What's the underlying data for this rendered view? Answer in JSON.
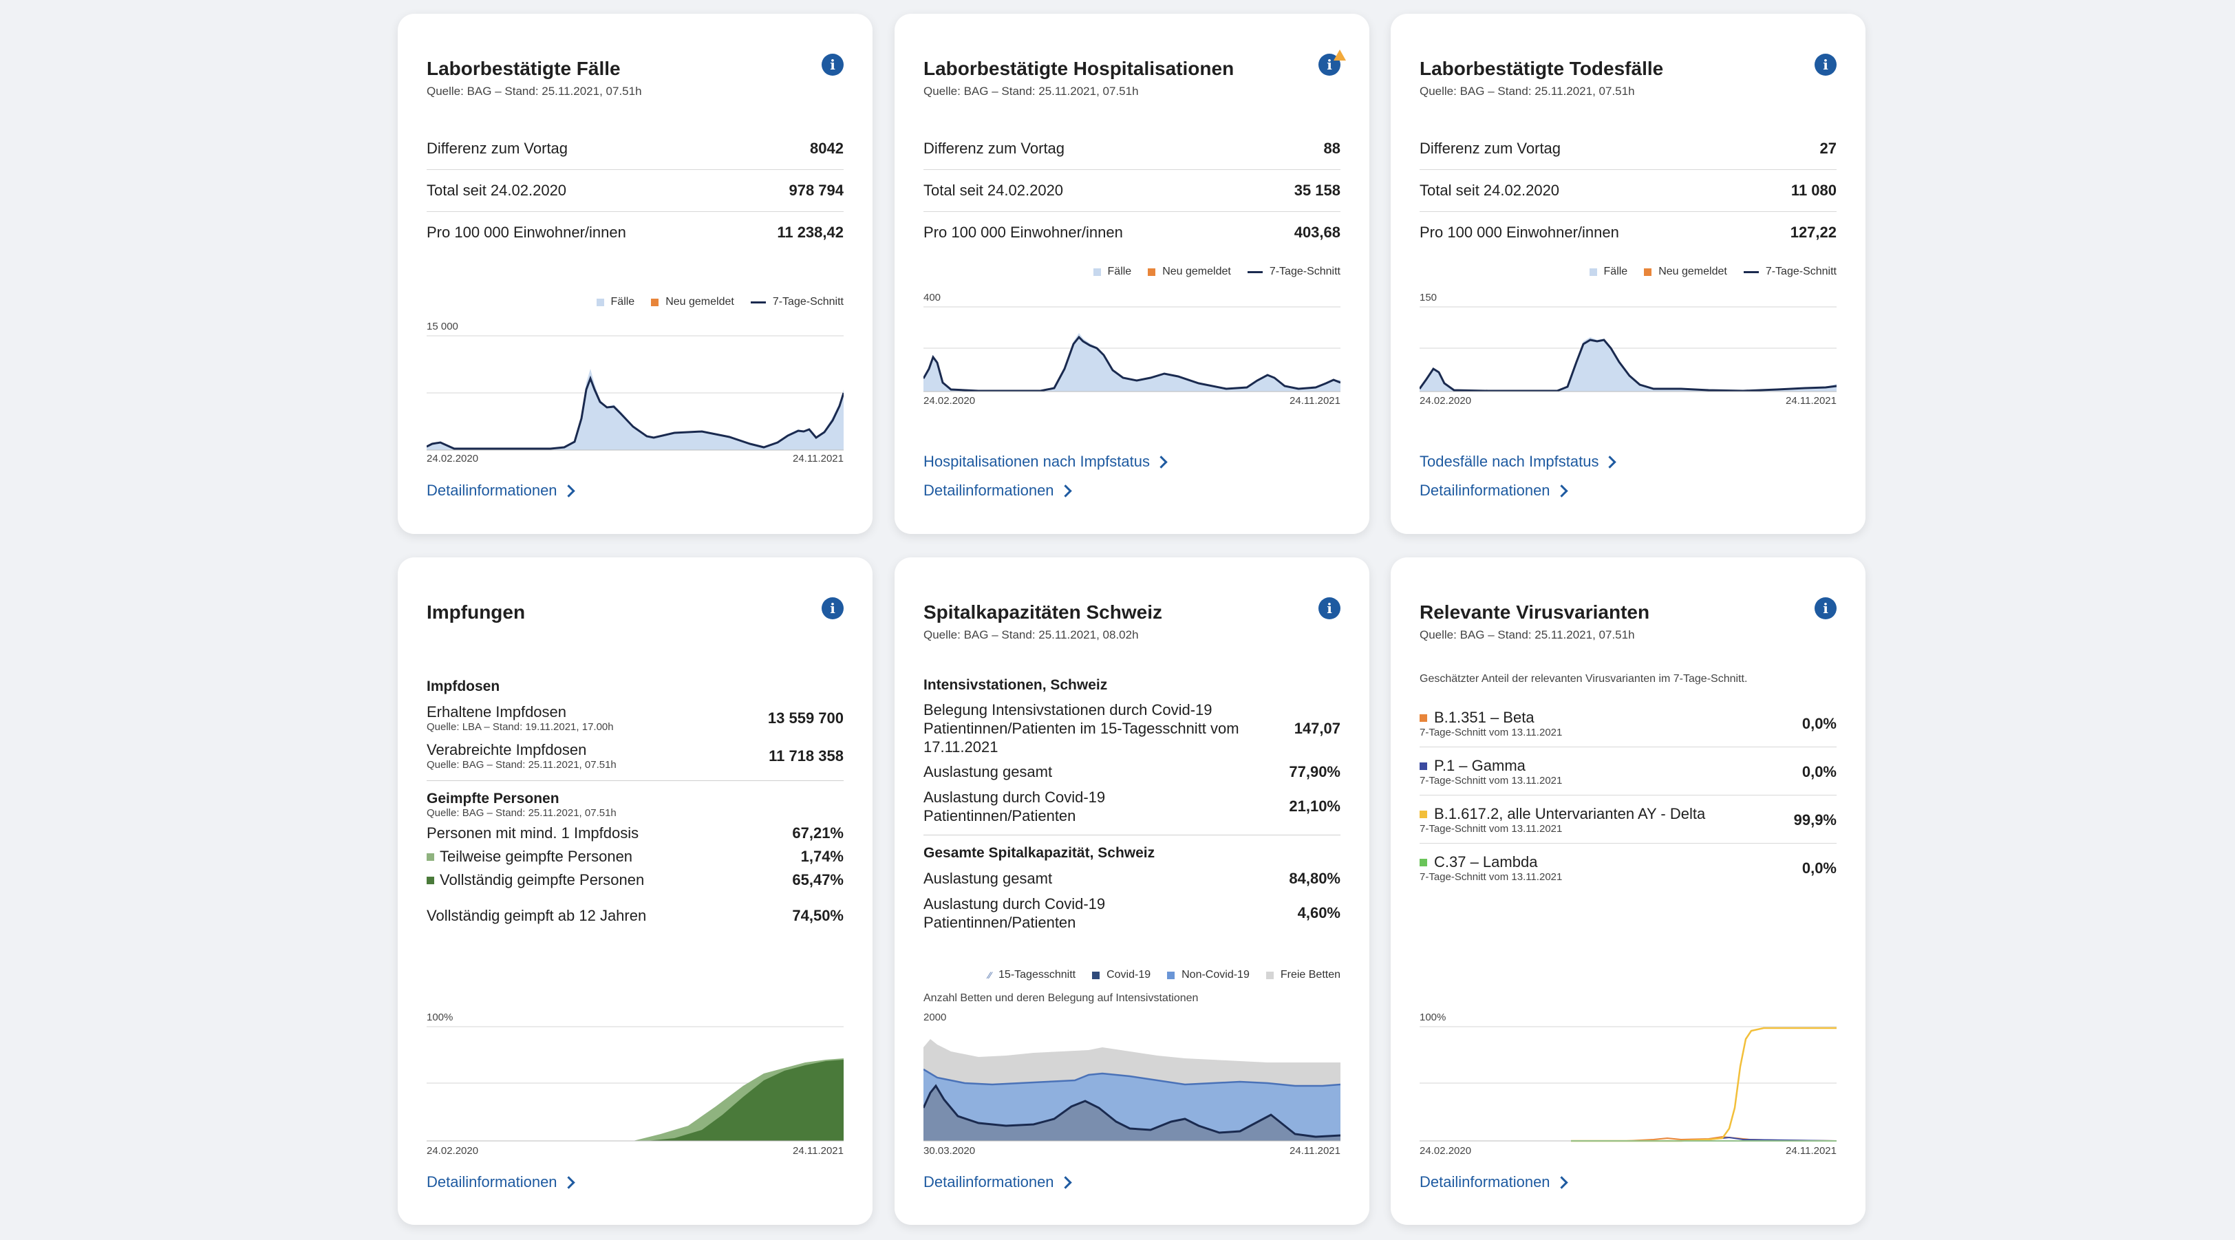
{
  "cards": {
    "cases": {
      "title": "Laborbestätigte Fälle",
      "source": "Quelle: BAG – Stand: 25.11.2021, 07.51h",
      "rows": [
        {
          "label": "Differenz zum Vortag",
          "value": "8042"
        },
        {
          "label": "Total seit 24.02.2020",
          "value": "978 794"
        },
        {
          "label": "Pro 100 000 Einwohner/innen",
          "value": "11 238,42"
        }
      ],
      "legend": [
        "Fälle",
        "Neu gemeldet",
        "7-Tage-Schnitt"
      ],
      "ymax_label": "15 000",
      "x_start": "24.02.2020",
      "x_end": "24.11.2021",
      "link": "Detailinformationen"
    },
    "hosp": {
      "title": "Laborbestätigte Hospitalisationen",
      "source": "Quelle: BAG – Stand: 25.11.2021, 07.51h",
      "rows": [
        {
          "label": "Differenz zum Vortag",
          "value": "88"
        },
        {
          "label": "Total seit 24.02.2020",
          "value": "35 158"
        },
        {
          "label": "Pro 100 000 Einwohner/innen",
          "value": "403,68"
        }
      ],
      "legend": [
        "Fälle",
        "Neu gemeldet",
        "7-Tage-Schnitt"
      ],
      "ymax_label": "400",
      "x_start": "24.02.2020",
      "x_end": "24.11.2021",
      "link_extra": "Hospitalisationen nach Impfstatus",
      "link": "Detailinformationen"
    },
    "deaths": {
      "title": "Laborbestätigte Todesfälle",
      "source": "Quelle: BAG – Stand: 25.11.2021, 07.51h",
      "rows": [
        {
          "label": "Differenz zum Vortag",
          "value": "27"
        },
        {
          "label": "Total seit 24.02.2020",
          "value": "11 080"
        },
        {
          "label": "Pro 100 000 Einwohner/innen",
          "value": "127,22"
        }
      ],
      "legend": [
        "Fälle",
        "Neu gemeldet",
        "7-Tage-Schnitt"
      ],
      "ymax_label": "150",
      "x_start": "24.02.2020",
      "x_end": "24.11.2021",
      "link_extra": "Todesfälle nach Impfstatus",
      "link": "Detailinformationen"
    },
    "vacc": {
      "title": "Impfungen",
      "doses_heading": "Impfdosen",
      "received_label": "Erhaltene Impfdosen",
      "received_source": "Quelle: LBA – Stand: 19.11.2021, 17.00h",
      "received_value": "13 559 700",
      "admin_label": "Verabreichte Impfdosen",
      "admin_source": "Quelle: BAG – Stand: 25.11.2021, 07.51h",
      "admin_value": "11 718 358",
      "persons_heading": "Geimpfte Personen",
      "persons_source": "Quelle: BAG – Stand: 25.11.2021, 07.51h",
      "min1_label": "Personen mit mind. 1 Impfdosis",
      "min1_value": "67,21%",
      "partial_label": "Teilweise geimpfte Personen",
      "partial_value": "1,74%",
      "full_label": "Vollständig geimpfte Personen",
      "full_value": "65,47%",
      "full12_label": "Vollständig geimpft ab 12 Jahren",
      "full12_value": "74,50%",
      "ymax_label": "100%",
      "x_start": "24.02.2020",
      "x_end": "24.11.2021",
      "link": "Detailinformationen"
    },
    "hospital": {
      "title": "Spitalkapazitäten Schweiz",
      "source": "Quelle: BAG – Stand: 25.11.2021, 08.02h",
      "icu_heading": "Intensivstationen, Schweiz",
      "icu_rows": [
        {
          "label": "Belegung Intensivstationen durch Covid-19 Patientinnen/Patienten im 15-Tagesschnitt vom 17.11.2021",
          "value": "147,07"
        },
        {
          "label": "Auslastung gesamt",
          "value": "77,90%"
        },
        {
          "label": "Auslastung durch Covid-19 Patientinnen/Patienten",
          "value": "21,10%"
        }
      ],
      "total_heading": "Gesamte Spitalkapazität, Schweiz",
      "total_rows": [
        {
          "label": "Auslastung gesamt",
          "value": "84,80%"
        },
        {
          "label": "Auslastung durch Covid-19 Patientinnen/Patienten",
          "value": "4,60%"
        }
      ],
      "legend": [
        "15-Tagesschnitt",
        "Covid-19",
        "Non-Covid-19",
        "Freie Betten"
      ],
      "chart_note": "Anzahl Betten und deren Belegung auf Intensivstationen",
      "ymax_label": "2000",
      "x_start": "30.03.2020",
      "x_end": "24.11.2021",
      "link": "Detailinformationen"
    },
    "variants": {
      "title": "Relevante Virusvarianten",
      "source": "Quelle: BAG – Stand: 25.11.2021, 07.51h",
      "note": "Geschätzter Anteil der relevanten Virusvarianten im 7-Tage-Schnitt.",
      "items": [
        {
          "name": "B.1.351 – Beta",
          "sub": "7-Tage-Schnitt vom 13.11.2021",
          "value": "0,0%",
          "color": "#e8853a"
        },
        {
          "name": "P.1 – Gamma",
          "sub": "7-Tage-Schnitt vom 13.11.2021",
          "value": "0,0%",
          "color": "#3b4aa0"
        },
        {
          "name": "B.1.617.2, alle Untervarianten AY - Delta",
          "sub": "7-Tage-Schnitt vom 13.11.2021",
          "value": "99,9%",
          "color": "#f2bf3a"
        },
        {
          "name": "C.37 – Lambda",
          "sub": "7-Tage-Schnitt vom 13.11.2021",
          "value": "0,0%",
          "color": "#6ac45a"
        }
      ],
      "ymax_label": "100%",
      "x_start": "24.02.2020",
      "x_end": "24.11.2021",
      "link": "Detailinformationen"
    }
  },
  "colors": {
    "accent": "#1e5aa0",
    "bar": "#c7d8ee",
    "new": "#e8853a",
    "avg": "#1a2a4f",
    "vacc_full": "#4a7a3a",
    "vacc_partial": "#8fb37f",
    "icu_free": "#d5d5d5",
    "icu_noncovid": "#8fb0de",
    "icu_covid": "#2f4a7a"
  }
}
